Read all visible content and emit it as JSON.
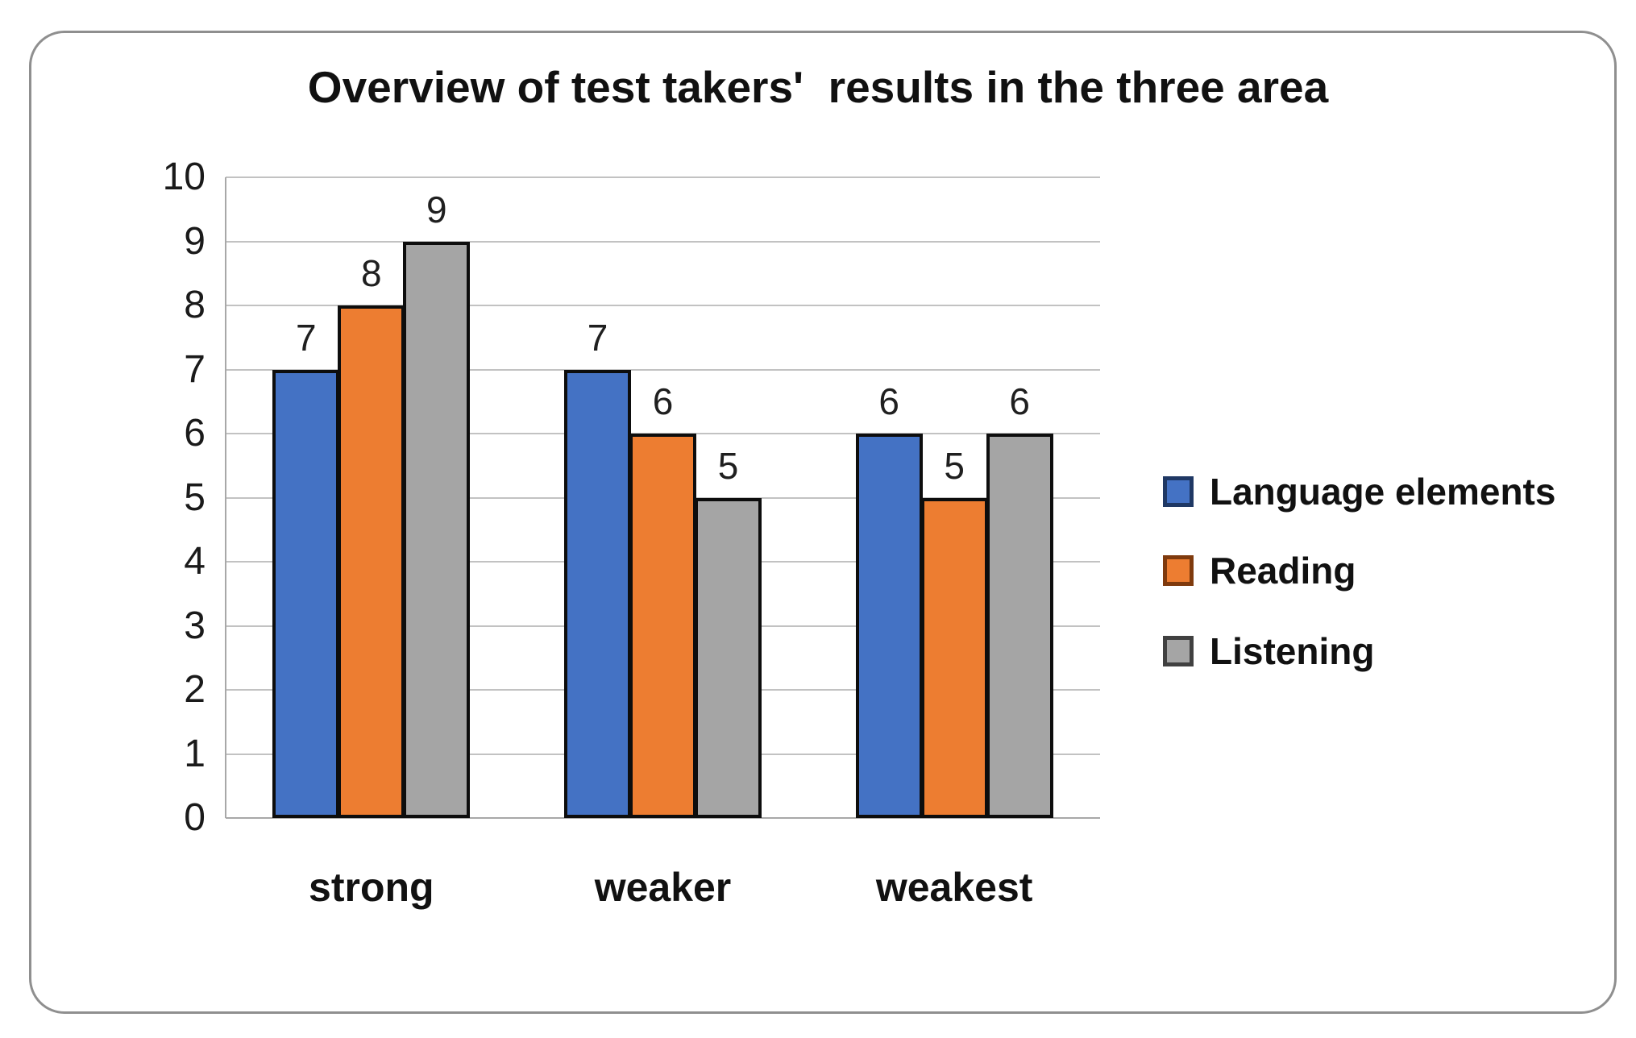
{
  "chart_data": {
    "type": "bar",
    "title": "Overview of test takers'  results in the three area",
    "categories": [
      "strong",
      "weaker",
      "weakest"
    ],
    "series": [
      {
        "name": "Language elements",
        "color": "#4472C4",
        "border_color": "#1F3864",
        "values": [
          7,
          7,
          6
        ]
      },
      {
        "name": "Reading",
        "color": "#ED7D31",
        "border_color": "#7F3A0D",
        "values": [
          8,
          6,
          5
        ]
      },
      {
        "name": "Listening",
        "color": "#A5A5A5",
        "border_color": "#404040",
        "values": [
          9,
          5,
          6
        ]
      }
    ],
    "data_labels": [
      [
        "7",
        "8",
        "9"
      ],
      [
        "7",
        "6",
        "5"
      ],
      [
        "6",
        "5",
        "6"
      ]
    ],
    "yticks": [
      0,
      1,
      2,
      3,
      4,
      5,
      6,
      7,
      8,
      9,
      10
    ],
    "ylim": [
      0,
      10
    ],
    "xlabel": "",
    "ylabel": "",
    "grid": true,
    "legend_position": "right",
    "bar_outline_color": "#0d0d0d",
    "gridline_color": "#c2c2c2",
    "frame_border_color": "#8f8f8f",
    "background_color": "#ffffff"
  }
}
